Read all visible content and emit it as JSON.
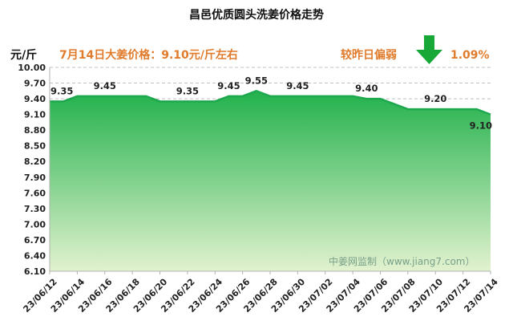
{
  "chart_data": {
    "type": "area",
    "title": "昌邑优质圆头洗姜价格走势",
    "ylabel": "元/斤",
    "ylim": [
      6.1,
      10.0
    ],
    "yticks": [
      6.1,
      6.4,
      6.7,
      7.0,
      7.3,
      7.6,
      7.9,
      8.2,
      8.5,
      8.8,
      9.1,
      9.4,
      9.7,
      10.0
    ],
    "x": [
      "23/06/12",
      "23/06/13",
      "23/06/14",
      "23/06/15",
      "23/06/16",
      "23/06/17",
      "23/06/18",
      "23/06/19",
      "23/06/20",
      "23/06/21",
      "23/06/22",
      "23/06/23",
      "23/06/24",
      "23/06/25",
      "23/06/26",
      "23/06/27",
      "23/06/28",
      "23/06/29",
      "23/06/30",
      "23/07/01",
      "23/07/02",
      "23/07/03",
      "23/07/04",
      "23/07/05",
      "23/07/06",
      "23/07/07",
      "23/07/08",
      "23/07/09",
      "23/07/10",
      "23/07/11",
      "23/07/12",
      "23/07/13",
      "23/07/14"
    ],
    "xtick_labels": [
      "23/06/12",
      "23/06/14",
      "23/06/16",
      "23/06/18",
      "23/06/20",
      "23/06/22",
      "23/06/24",
      "23/06/26",
      "23/06/28",
      "23/06/30",
      "23/07/02",
      "23/07/04",
      "23/07/06",
      "23/07/08",
      "23/07/10",
      "23/07/12",
      "23/07/14"
    ],
    "values": [
      9.35,
      9.35,
      9.45,
      9.45,
      9.45,
      9.45,
      9.45,
      9.45,
      9.35,
      9.35,
      9.35,
      9.35,
      9.35,
      9.45,
      9.45,
      9.55,
      9.45,
      9.45,
      9.45,
      9.45,
      9.45,
      9.45,
      9.45,
      9.4,
      9.4,
      9.3,
      9.2,
      9.2,
      9.2,
      9.2,
      9.2,
      9.2,
      9.1
    ],
    "data_labels": [
      {
        "x": "23/06/12",
        "text": "9.35"
      },
      {
        "x": "23/06/16",
        "text": "9.45"
      },
      {
        "x": "23/06/22",
        "text": "9.35"
      },
      {
        "x": "23/06/25",
        "text": "9.45"
      },
      {
        "x": "23/06/27",
        "text": "9.55"
      },
      {
        "x": "23/06/30",
        "text": "9.45"
      },
      {
        "x": "23/07/05",
        "text": "9.40"
      },
      {
        "x": "23/07/10",
        "text": "9.20"
      },
      {
        "x": "23/07/14",
        "text": "9.10"
      }
    ],
    "grid": true,
    "colors": {
      "line": "#1ea84e",
      "fill_top": "#22b14c",
      "fill_bottom": "#e2f2cf",
      "note": "#e07b2c",
      "arrow": "#18a838"
    }
  },
  "header": {
    "price_note": "7月14日大姜价格：9.10元/斤左右",
    "change_label": "较昨日偏弱",
    "change_value": "1.09%",
    "arrow_icon": "down-arrow-icon"
  },
  "watermark": "中姜网监制（www.jiang7.com）"
}
